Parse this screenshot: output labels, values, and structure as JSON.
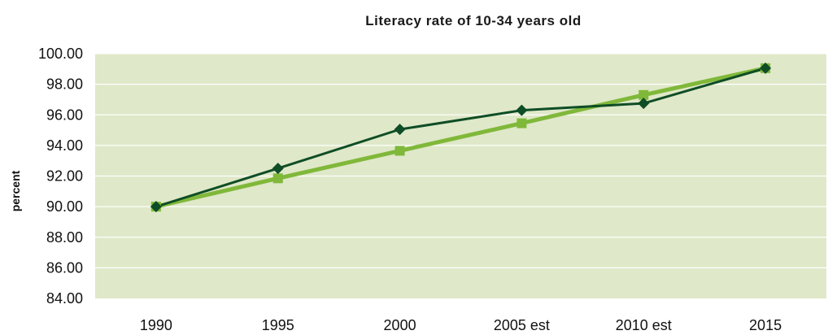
{
  "chart_data": {
    "type": "line",
    "title": "Literacy rate of 10-34 years old",
    "ylabel": "percent",
    "xlabel": "",
    "categories": [
      "1990",
      "1995",
      "2000",
      "2005 est",
      "2010 est",
      "2015"
    ],
    "ylim": [
      84,
      100
    ],
    "yticks": [
      "84.00",
      "86.00",
      "88.00",
      "90.00",
      "92.00",
      "94.00",
      "96.00",
      "98.00",
      "100.00"
    ],
    "grid": true,
    "legend": "none",
    "series": [
      {
        "values": [
          90.0,
          92.5,
          95.05,
          96.3,
          96.75,
          99.05
        ],
        "color": "#0e4d25",
        "marker": "diamond"
      },
      {
        "values": [
          90.0,
          91.85,
          93.65,
          95.45,
          97.3,
          99.05
        ],
        "color": "#80b83a",
        "marker": "square"
      }
    ],
    "plot_background": "#dfe8c8"
  }
}
